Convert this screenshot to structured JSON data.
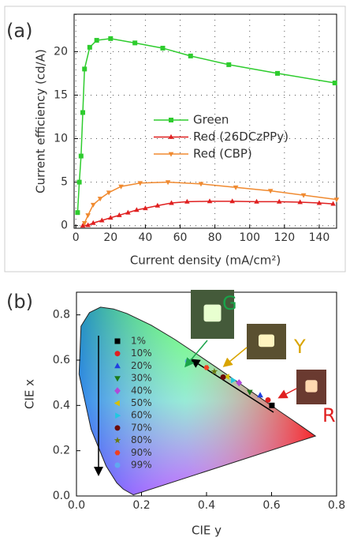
{
  "chart_data": [
    {
      "type": "line",
      "label": "(a)",
      "y_label": "Current efficiency (cd/A)",
      "x_label": "Current density (mA/cm²)",
      "xlim": [
        -1,
        150
      ],
      "ylim": [
        -0.3,
        24.3
      ],
      "xticks": [
        0,
        20,
        40,
        60,
        80,
        100,
        120,
        140
      ],
      "yticks": [
        0,
        5,
        10,
        15,
        20
      ],
      "grid": true,
      "legend": "center-right",
      "series": [
        {
          "name": "Green",
          "color": "#2ecc2e",
          "marker": "square",
          "x": [
            1,
            2,
            3,
            4,
            5,
            8,
            12,
            20,
            34,
            50,
            66,
            88,
            116,
            149
          ],
          "values": [
            1.5,
            5,
            8,
            13,
            18,
            20.5,
            21.3,
            21.5,
            21,
            20.4,
            19.5,
            18.5,
            17.5,
            16.4
          ]
        },
        {
          "name": "Red (26DCzPPy)",
          "color": "#e02020",
          "marker": "triangle",
          "x": [
            4,
            7,
            10,
            15,
            20,
            25,
            30,
            35,
            40,
            47,
            55,
            64,
            77,
            90,
            104,
            117,
            129,
            140,
            148
          ],
          "values": [
            0,
            0.05,
            0.3,
            0.6,
            0.9,
            1.2,
            1.5,
            1.8,
            2,
            2.3,
            2.6,
            2.75,
            2.8,
            2.8,
            2.75,
            2.75,
            2.7,
            2.6,
            2.5
          ]
        },
        {
          "name": "Red (CBP)",
          "color": "#f08a30",
          "marker": "triangle-down",
          "x": [
            5,
            7,
            10,
            14,
            19,
            26,
            37,
            53,
            72,
            92,
            112,
            131,
            150
          ],
          "values": [
            0.3,
            1.2,
            2.4,
            3.1,
            3.8,
            4.5,
            4.9,
            5,
            4.8,
            4.4,
            4,
            3.5,
            3
          ]
        }
      ]
    },
    {
      "type": "scatter",
      "label": "(b)",
      "y_label": "CIE x",
      "x_label": "CIE y",
      "xlim": [
        0,
        0.8
      ],
      "ylim": [
        0,
        0.9
      ],
      "xticks": [
        {
          "value": 0,
          "label": "0.0"
        },
        0.2,
        0.4,
        0.6,
        0.8
      ],
      "yticks": [
        {
          "value": 0,
          "label": "0.0"
        },
        0.2,
        0.4,
        0.6,
        0.8
      ],
      "annotations": [
        {
          "text": "G",
          "color": "#1aa34a"
        },
        {
          "text": "Y",
          "color": "#d9a400"
        },
        {
          "text": "R",
          "color": "#e02020"
        }
      ],
      "series": [
        {
          "name": "1%",
          "color": "#000000",
          "marker": "square",
          "x": [
            0.601
          ],
          "values": [
            0.4
          ]
        },
        {
          "name": "10%",
          "color": "#e02020",
          "marker": "circle",
          "x": [
            0.589
          ],
          "values": [
            0.424
          ]
        },
        {
          "name": "20%",
          "color": "#2040e0",
          "marker": "triangle",
          "x": [
            0.565
          ],
          "values": [
            0.445
          ]
        },
        {
          "name": "30%",
          "color": "#1a7a1a",
          "marker": "triangle-down",
          "x": [
            0.533
          ],
          "values": [
            0.459
          ]
        },
        {
          "name": "40%",
          "color": "#b04ad8",
          "marker": "diamond",
          "x": [
            0.5
          ],
          "values": [
            0.5
          ]
        },
        {
          "name": "50%",
          "color": "#d8c000",
          "marker": "triangle-left",
          "x": [
            0.463
          ],
          "values": [
            0.527
          ]
        },
        {
          "name": "60%",
          "color": "#20c8e0",
          "marker": "triangle-right",
          "x": [
            0.482
          ],
          "values": [
            0.511
          ]
        },
        {
          "name": "70%",
          "color": "#6a0a0a",
          "marker": "circle",
          "x": [
            0.451
          ],
          "values": [
            0.525
          ]
        },
        {
          "name": "80%",
          "color": "#6a7a10",
          "marker": "star",
          "x": [
            0.424
          ],
          "values": [
            0.55
          ]
        },
        {
          "name": "90%",
          "color": "#f04020",
          "marker": "hexagon",
          "x": [
            0.4
          ],
          "values": [
            0.567
          ]
        },
        {
          "name": "99%",
          "color": "#60a8f0",
          "marker": "circle",
          "x": [
            0.342
          ],
          "values": [
            0.595
          ]
        }
      ]
    }
  ]
}
